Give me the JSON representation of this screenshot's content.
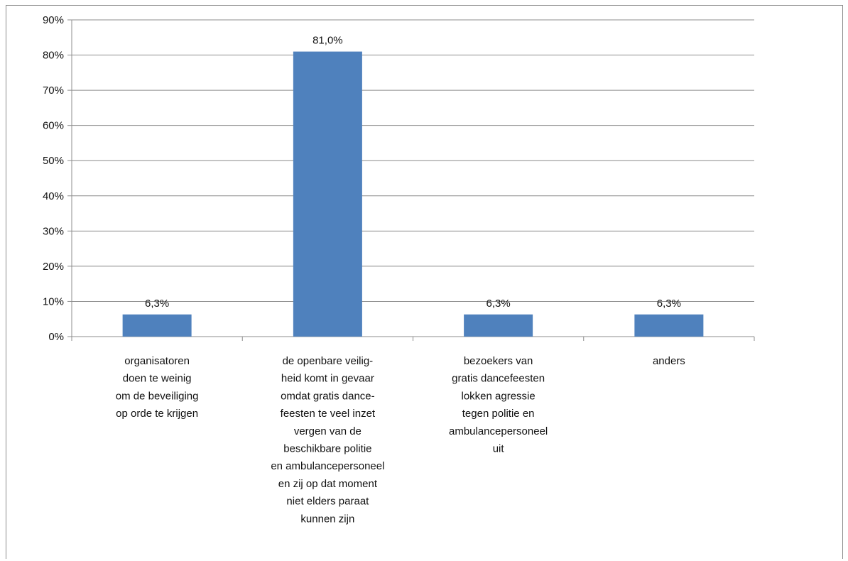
{
  "chart_data": {
    "type": "bar",
    "categories": [
      [
        "organisatoren",
        "doen te weinig",
        "om de beveiliging",
        "op orde te krijgen"
      ],
      [
        "de openbare veilig-",
        "heid komt in gevaar",
        "omdat gratis dance-",
        "feesten te veel inzet",
        "vergen van de",
        "beschikbare politie",
        "en ambulancepersoneel",
        "en zij op dat moment",
        "niet elders paraat",
        "kunnen zijn"
      ],
      [
        "bezoekers van",
        "gratis dancefeesten",
        "lokken agressie",
        "tegen politie en",
        "ambulancepersoneel",
        "uit"
      ],
      [
        "anders"
      ]
    ],
    "values": [
      6.3,
      81.0,
      6.3,
      6.3
    ],
    "data_labels": [
      "6,3%",
      "81,0%",
      "6,3%",
      "6,3%"
    ],
    "yticks": [
      "0%",
      "10%",
      "20%",
      "30%",
      "40%",
      "50%",
      "60%",
      "70%",
      "80%",
      "90%"
    ],
    "ylim": [
      0,
      90
    ],
    "grid": true,
    "bar_color": "#4f81bd",
    "grid_color": "#8c8c8c"
  }
}
